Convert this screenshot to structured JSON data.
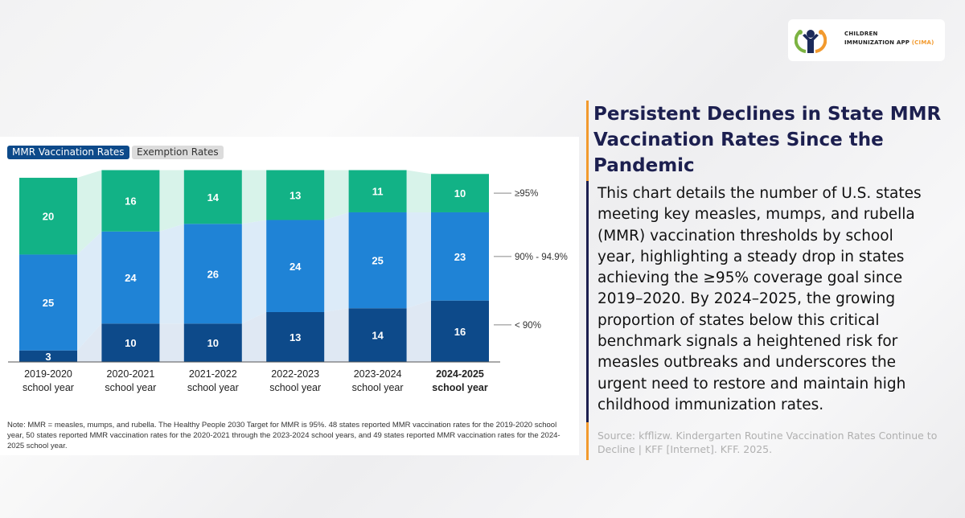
{
  "logo": {
    "line1": "CHILDREN",
    "line2": "IMMUNIZATION APP",
    "accent": "(CIMA)"
  },
  "tabs": [
    {
      "label": "MMR Vaccination Rates",
      "active": true
    },
    {
      "label": "Exemption Rates",
      "active": false
    }
  ],
  "chart_data": {
    "type": "bar",
    "stacked": true,
    "categories": [
      [
        "2019-2020",
        "school year"
      ],
      [
        "2020-2021",
        "school year"
      ],
      [
        "2021-2022",
        "school year"
      ],
      [
        "2022-2023",
        "school year"
      ],
      [
        "2023-2024",
        "school year"
      ],
      [
        "2024-2025",
        "school year"
      ]
    ],
    "series": [
      {
        "name": "< 90%",
        "values": [
          3,
          10,
          10,
          13,
          14,
          16
        ],
        "color": "#0d4a8a"
      },
      {
        "name": "90% - 94.9%",
        "values": [
          25,
          24,
          26,
          24,
          25,
          23
        ],
        "color": "#1f83d6"
      },
      {
        "name": "≥95%",
        "values": [
          20,
          16,
          14,
          13,
          11,
          10
        ],
        "color": "#12b286"
      }
    ],
    "ylim": [
      0,
      50
    ],
    "grid": false,
    "legend": "right, inline labels"
  },
  "note": "Note: MMR = measles, mumps, and rubella. The Healthy People 2030 Target for MMR is 95%. 48 states reported MMR vaccination rates for the 2019-2020 school year, 50 states reported MMR vaccination rates for the 2020-2021 through the 2023-2024 school years, and 49 states reported MMR vaccination rates for the 2024-2025 school year.",
  "title": "Persistent Declines in State MMR Vaccination Rates Since the Pandemic",
  "body": "This chart details the number of U.S. states meeting key measles, mumps, and rubella (MMR) vaccination thresholds by school year, highlighting a steady drop in states achieving the ≥95% coverage goal since 2019–2020. By 2024–2025, the growing proportion of states below this critical benchmark signals a heightened risk for measles outbreaks and underscores the urgent need to restore and maintain high childhood immunization rates.",
  "source": "Source: kfflizw. Kindergarten Routine Vaccination Rates Continue to Decline | KFF [Internet]. KFF. 2025.",
  "colors": {
    "navy": "#1c1f4f",
    "orange": "#f29a2e"
  }
}
